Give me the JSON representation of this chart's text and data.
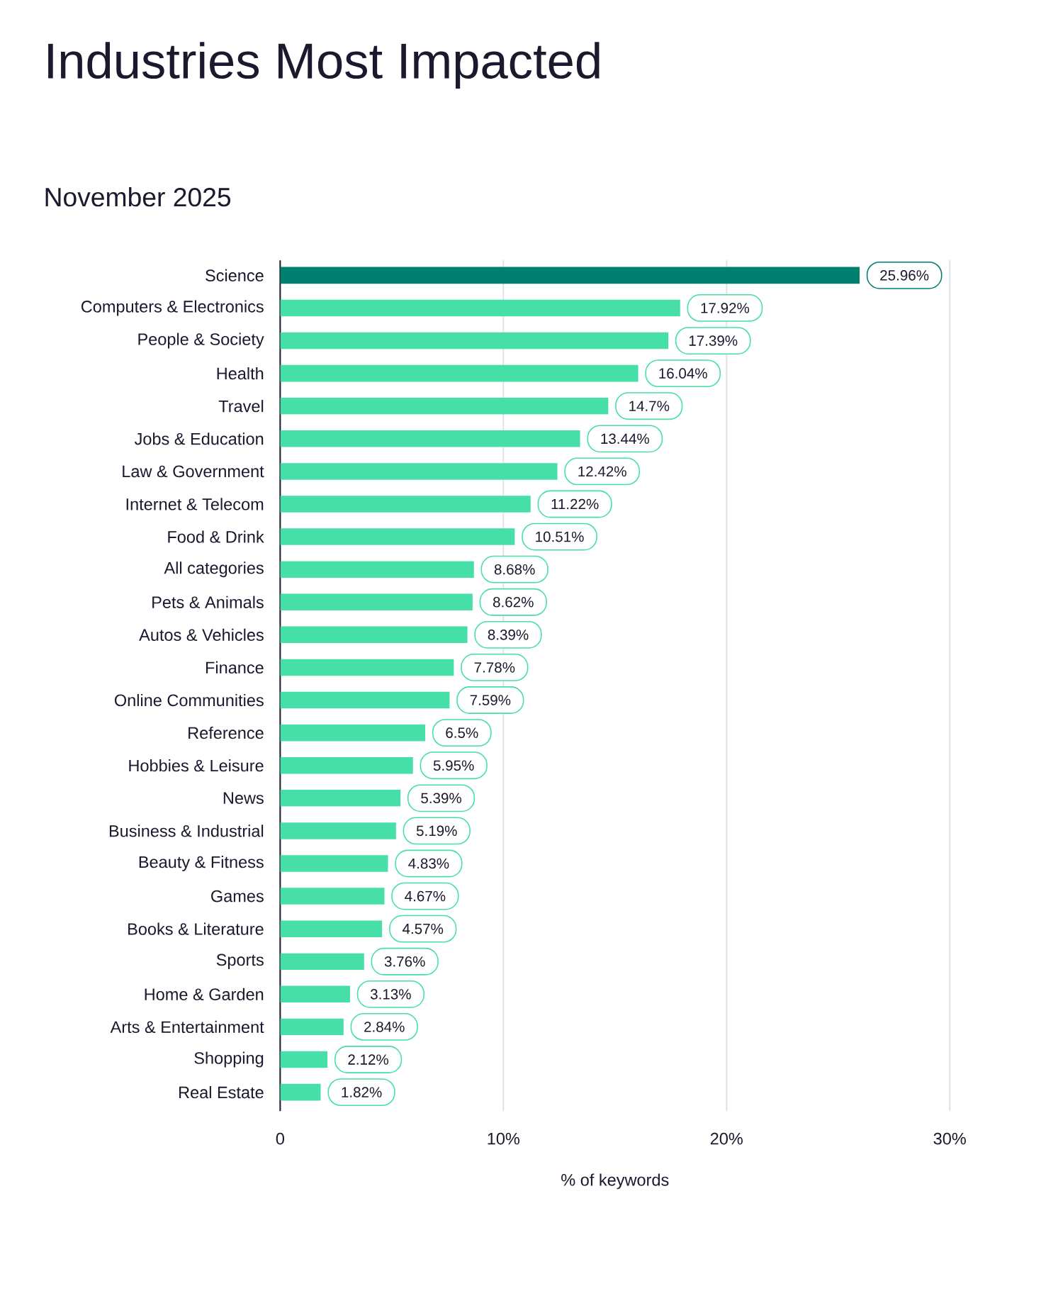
{
  "chart_data": {
    "type": "bar",
    "orientation": "horizontal",
    "title": "Industries Most Impacted",
    "subtitle": "November 2025",
    "xlabel": "% of keywords",
    "categories": [
      "Science",
      "Computers & Electronics",
      "People & Society",
      "Health",
      "Travel",
      "Jobs & Education",
      "Law & Government",
      "Internet & Telecom",
      "Food & Drink",
      "All categories",
      "Pets & Animals",
      "Autos & Vehicles",
      "Finance",
      "Online Communities",
      "Reference",
      "Hobbies & Leisure",
      "News",
      "Business & Industrial",
      "Beauty & Fitness",
      "Games",
      "Books & Literature",
      "Sports",
      "Home & Garden",
      "Arts & Entertainment",
      "Shopping",
      "Real Estate"
    ],
    "values": [
      25.96,
      17.92,
      17.39,
      16.04,
      14.7,
      13.44,
      12.42,
      11.22,
      10.51,
      8.68,
      8.62,
      8.39,
      7.78,
      7.59,
      6.5,
      5.95,
      5.39,
      5.19,
      4.83,
      4.67,
      4.57,
      3.76,
      3.13,
      2.84,
      2.12,
      1.82
    ],
    "value_labels": [
      "25.96%",
      "17.92%",
      "17.39%",
      "16.04%",
      "14.7%",
      "13.44%",
      "12.42%",
      "11.22%",
      "10.51%",
      "8.68%",
      "8.62%",
      "8.39%",
      "7.78%",
      "7.59%",
      "6.5%",
      "5.95%",
      "5.39%",
      "5.19%",
      "4.83%",
      "4.67%",
      "4.57%",
      "3.76%",
      "3.13%",
      "2.84%",
      "2.12%",
      "1.82%"
    ],
    "colors": [
      "#007f6e",
      "#45dfa7",
      "#45dfa7",
      "#45dfa7",
      "#45dfa7",
      "#45dfa7",
      "#45dfa7",
      "#45dfa7",
      "#45dfa7",
      "#45dfa7",
      "#45dfa7",
      "#45dfa7",
      "#45dfa7",
      "#45dfa7",
      "#45dfa7",
      "#45dfa7",
      "#45dfa7",
      "#45dfa7",
      "#45dfa7",
      "#45dfa7",
      "#45dfa7",
      "#45dfa7",
      "#45dfa7",
      "#45dfa7",
      "#45dfa7",
      "#45dfa7"
    ],
    "xlim": [
      0,
      30
    ],
    "xticks": [
      {
        "value": 0,
        "label": "0"
      },
      {
        "value": 10,
        "label": "10%"
      },
      {
        "value": 20,
        "label": "20%"
      },
      {
        "value": 30,
        "label": "30%"
      }
    ],
    "grid": "x"
  }
}
